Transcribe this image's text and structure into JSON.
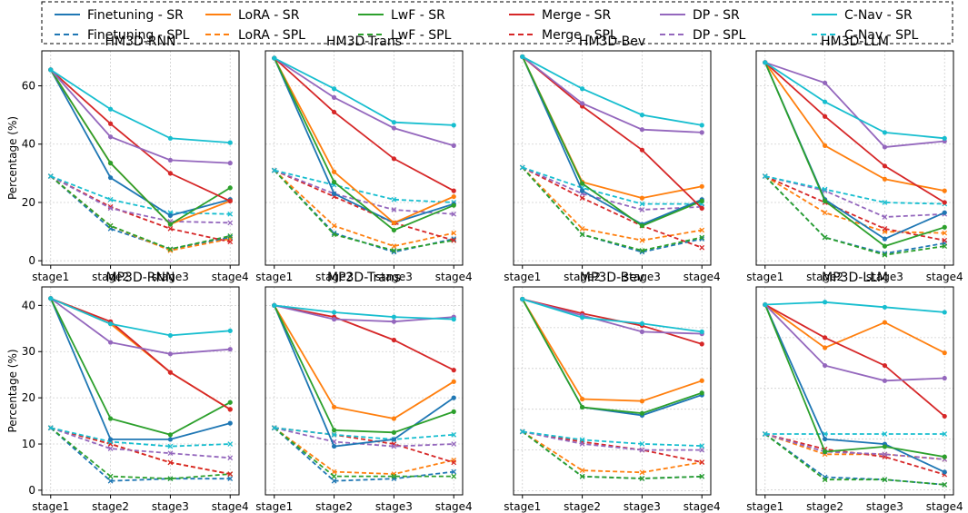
{
  "legend": [
    {
      "label": "Finetuning - SR",
      "color": "#1f77b4",
      "dash": false
    },
    {
      "label": "LoRA - SR",
      "color": "#ff7f0e",
      "dash": false
    },
    {
      "label": "LwF - SR",
      "color": "#2ca02c",
      "dash": false
    },
    {
      "label": "Merge - SR",
      "color": "#d62728",
      "dash": false
    },
    {
      "label": "DP - SR",
      "color": "#9467bd",
      "dash": false
    },
    {
      "label": "C-Nav - SR",
      "color": "#17becf",
      "dash": false
    },
    {
      "label": "Finetuning - SPL",
      "color": "#1f77b4",
      "dash": true
    },
    {
      "label": "LoRA - SPL",
      "color": "#ff7f0e",
      "dash": true
    },
    {
      "label": "LwF - SPL",
      "color": "#2ca02c",
      "dash": true
    },
    {
      "label": "Merge - SPL",
      "color": "#d62728",
      "dash": true
    },
    {
      "label": "DP - SPL",
      "color": "#9467bd",
      "dash": true
    },
    {
      "label": "C-Nav - SPL",
      "color": "#17becf",
      "dash": true
    }
  ],
  "chart_data": [
    {
      "type": "line",
      "title": "HM3D-RNN",
      "ylabel": "Percentage (%)",
      "categories": [
        "stage1",
        "stage2",
        "stage3",
        "stage4"
      ],
      "ylim": [
        -1.5,
        72
      ],
      "yticks": [
        0,
        20,
        40,
        60
      ],
      "series": [
        {
          "name": "Finetuning - SR",
          "values": [
            65.5,
            28.5,
            15.5,
            21
          ]
        },
        {
          "name": "LoRA - SR",
          "values": [
            65.5,
            33.5,
            12.5,
            20.5
          ]
        },
        {
          "name": "LwF - SR",
          "values": [
            65.5,
            33.5,
            12.5,
            25
          ]
        },
        {
          "name": "Merge - SR",
          "values": [
            65.5,
            47,
            30,
            20.5
          ]
        },
        {
          "name": "DP - SR",
          "values": [
            65.5,
            42.5,
            34.5,
            33.5
          ]
        },
        {
          "name": "C-Nav - SR",
          "values": [
            65.5,
            52,
            42,
            40.5
          ]
        },
        {
          "name": "Finetuning - SPL",
          "values": [
            29,
            11,
            4,
            8
          ]
        },
        {
          "name": "LoRA - SPL",
          "values": [
            29,
            12,
            3.5,
            7.5
          ]
        },
        {
          "name": "LwF - SPL",
          "values": [
            29,
            12,
            4,
            8.5
          ]
        },
        {
          "name": "Merge - SPL",
          "values": [
            29,
            18.5,
            11,
            6.5
          ]
        },
        {
          "name": "DP - SPL",
          "values": [
            29,
            18,
            13.5,
            13
          ]
        },
        {
          "name": "C-Nav - SPL",
          "values": [
            29,
            21,
            16.5,
            16
          ]
        }
      ]
    },
    {
      "type": "line",
      "title": "HM3D-Trans",
      "ylabel": "",
      "categories": [
        "stage1",
        "stage2",
        "stage3",
        "stage4"
      ],
      "ylim": [
        -1.5,
        72
      ],
      "yticks": [],
      "series": [
        {
          "name": "Finetuning - SR",
          "values": [
            69.5,
            23,
            13,
            19.5
          ]
        },
        {
          "name": "LoRA - SR",
          "values": [
            69.5,
            30.5,
            13,
            22
          ]
        },
        {
          "name": "LwF - SR",
          "values": [
            69.5,
            27,
            10.5,
            19
          ]
        },
        {
          "name": "Merge - SR",
          "values": [
            69.5,
            51,
            35,
            24
          ]
        },
        {
          "name": "DP - SR",
          "values": [
            69.5,
            56,
            45.5,
            39.5
          ]
        },
        {
          "name": "C-Nav - SR",
          "values": [
            69.5,
            59,
            47.5,
            46.5
          ]
        },
        {
          "name": "Finetuning - SPL",
          "values": [
            31,
            9.5,
            3,
            7.5
          ]
        },
        {
          "name": "LoRA - SPL",
          "values": [
            31,
            12,
            5,
            9.5
          ]
        },
        {
          "name": "LwF - SPL",
          "values": [
            31,
            9,
            3.5,
            7
          ]
        },
        {
          "name": "Merge - SPL",
          "values": [
            31,
            22,
            13,
            7
          ]
        },
        {
          "name": "DP - SPL",
          "values": [
            31,
            23,
            17.5,
            16
          ]
        },
        {
          "name": "C-Nav - SPL",
          "values": [
            31,
            26,
            21,
            20
          ]
        }
      ]
    },
    {
      "type": "line",
      "title": "HM3D-Bev",
      "ylabel": "",
      "categories": [
        "stage1",
        "stage2",
        "stage3",
        "stage4"
      ],
      "ylim": [
        -1.5,
        72
      ],
      "yticks": [],
      "series": [
        {
          "name": "Finetuning - SR",
          "values": [
            70,
            24,
            12.5,
            21
          ]
        },
        {
          "name": "LoRA - SR",
          "values": [
            70,
            27,
            21.5,
            25.5
          ]
        },
        {
          "name": "LwF - SR",
          "values": [
            70,
            26.5,
            12,
            20.5
          ]
        },
        {
          "name": "Merge - SR",
          "values": [
            70,
            53,
            38,
            18
          ]
        },
        {
          "name": "DP - SR",
          "values": [
            70,
            54,
            45,
            44
          ]
        },
        {
          "name": "C-Nav - SR",
          "values": [
            70,
            59,
            50,
            46.5
          ]
        },
        {
          "name": "Finetuning - SPL",
          "values": [
            32,
            9,
            3,
            7.5
          ]
        },
        {
          "name": "LoRA - SPL",
          "values": [
            32,
            11,
            7,
            10.5
          ]
        },
        {
          "name": "LwF - SPL",
          "values": [
            32,
            9,
            3.5,
            8
          ]
        },
        {
          "name": "Merge - SPL",
          "values": [
            32,
            21.5,
            12,
            4.5
          ]
        },
        {
          "name": "DP - SPL",
          "values": [
            32,
            23,
            17.5,
            18.5
          ]
        },
        {
          "name": "C-Nav - SPL",
          "values": [
            32,
            25,
            19.5,
            19.5
          ]
        }
      ]
    },
    {
      "type": "line",
      "title": "HM3D-LLM",
      "ylabel": "",
      "categories": [
        "stage1",
        "stage2",
        "stage3",
        "stage4"
      ],
      "ylim": [
        -1.5,
        72
      ],
      "yticks": [],
      "series": [
        {
          "name": "Finetuning - SR",
          "values": [
            68,
            21,
            7.5,
            16.5
          ]
        },
        {
          "name": "LoRA - SR",
          "values": [
            68,
            39.5,
            28,
            24
          ]
        },
        {
          "name": "LwF - SR",
          "values": [
            68,
            20.5,
            5,
            11.5
          ]
        },
        {
          "name": "Merge - SR",
          "values": [
            68,
            49.5,
            32.5,
            20
          ]
        },
        {
          "name": "DP - SR",
          "values": [
            68,
            61,
            39,
            41
          ]
        },
        {
          "name": "C-Nav - SR",
          "values": [
            68,
            54.5,
            44,
            42
          ]
        },
        {
          "name": "Finetuning - SPL",
          "values": [
            29,
            8,
            2.5,
            6
          ]
        },
        {
          "name": "LoRA - SPL",
          "values": [
            29,
            16.5,
            10,
            9.5
          ]
        },
        {
          "name": "LwF - SPL",
          "values": [
            29,
            8,
            2,
            5
          ]
        },
        {
          "name": "Merge - SPL",
          "values": [
            29,
            20,
            11,
            7
          ]
        },
        {
          "name": "DP - SPL",
          "values": [
            29,
            24,
            15,
            16
          ]
        },
        {
          "name": "C-Nav - SPL",
          "values": [
            29,
            24.5,
            20,
            19.5
          ]
        }
      ]
    },
    {
      "type": "line",
      "title": "MP3D-RNN",
      "ylabel": "Percentage (%)",
      "categories": [
        "stage1",
        "stage2",
        "stage3",
        "stage4"
      ],
      "ylim": [
        -1,
        44
      ],
      "yticks": [
        0,
        10,
        20,
        30,
        40
      ],
      "series": [
        {
          "name": "Finetuning - SR",
          "values": [
            41.5,
            11,
            11,
            14.5
          ]
        },
        {
          "name": "LoRA - SR",
          "values": [
            41.5,
            36,
            25.5,
            17.5
          ]
        },
        {
          "name": "LwF - SR",
          "values": [
            41.5,
            15.5,
            12,
            19
          ]
        },
        {
          "name": "Merge - SR",
          "values": [
            41.5,
            36.5,
            25.5,
            17.5
          ]
        },
        {
          "name": "DP - SR",
          "values": [
            41.5,
            32,
            29.5,
            30.5
          ]
        },
        {
          "name": "C-Nav - SR",
          "values": [
            41.5,
            36,
            33.5,
            34.5
          ]
        },
        {
          "name": "Finetuning - SPL",
          "values": [
            13.5,
            2,
            2.5,
            2.5
          ]
        },
        {
          "name": "LoRA - SPL",
          "values": [
            13.5,
            10,
            6,
            3.5
          ]
        },
        {
          "name": "LwF - SPL",
          "values": [
            13.5,
            3,
            2.5,
            3.5
          ]
        },
        {
          "name": "Merge - SPL",
          "values": [
            13.5,
            10,
            6,
            3.5
          ]
        },
        {
          "name": "DP - SPL",
          "values": [
            13.5,
            9,
            8,
            7
          ]
        },
        {
          "name": "C-Nav - SPL",
          "values": [
            13.5,
            10.5,
            9.5,
            10
          ]
        }
      ]
    },
    {
      "type": "line",
      "title": "MP3D-Trans",
      "ylabel": "",
      "categories": [
        "stage1",
        "stage2",
        "stage3",
        "stage4"
      ],
      "ylim": [
        -1,
        44
      ],
      "yticks": [],
      "series": [
        {
          "name": "Finetuning - SR",
          "values": [
            40,
            9.5,
            11,
            20
          ]
        },
        {
          "name": "LoRA - SR",
          "values": [
            40,
            18,
            15.5,
            23.5
          ]
        },
        {
          "name": "LwF - SR",
          "values": [
            40,
            13,
            12.5,
            17
          ]
        },
        {
          "name": "Merge - SR",
          "values": [
            40,
            37.5,
            32.5,
            26
          ]
        },
        {
          "name": "DP - SR",
          "values": [
            40,
            37,
            36.5,
            37.5
          ]
        },
        {
          "name": "C-Nav - SR",
          "values": [
            40,
            38.5,
            37.5,
            37
          ]
        },
        {
          "name": "Finetuning - SPL",
          "values": [
            13.5,
            2,
            2.5,
            4
          ]
        },
        {
          "name": "LoRA - SPL",
          "values": [
            13.5,
            4,
            3.5,
            6.5
          ]
        },
        {
          "name": "LwF - SPL",
          "values": [
            13.5,
            3,
            3,
            3
          ]
        },
        {
          "name": "Merge - SPL",
          "values": [
            13.5,
            12,
            10,
            6
          ]
        },
        {
          "name": "DP - SPL",
          "values": [
            13.5,
            10.5,
            9.5,
            10
          ]
        },
        {
          "name": "C-Nav - SPL",
          "values": [
            13.5,
            12,
            11,
            12
          ]
        }
      ]
    },
    {
      "type": "line",
      "title": "MP3D-Bev",
      "ylabel": "",
      "categories": [
        "stage1",
        "stage2",
        "stage3",
        "stage4"
      ],
      "ylim": [
        -1,
        50
      ],
      "yticks": [],
      "series": [
        {
          "name": "Finetuning - SR",
          "values": [
            47,
            20.5,
            18.5,
            23.5
          ]
        },
        {
          "name": "LoRA - SR",
          "values": [
            47,
            22.5,
            22,
            27
          ]
        },
        {
          "name": "LwF - SR",
          "values": [
            47,
            20.5,
            19,
            24
          ]
        },
        {
          "name": "Merge - SR",
          "values": [
            47,
            43.5,
            40.5,
            36
          ]
        },
        {
          "name": "DP - SR",
          "values": [
            47,
            43,
            39,
            38.5
          ]
        },
        {
          "name": "C-Nav - SR",
          "values": [
            47,
            42.5,
            41,
            39
          ]
        },
        {
          "name": "Finetuning - SPL",
          "values": [
            14.5,
            3.5,
            3,
            3.5
          ]
        },
        {
          "name": "LoRA - SPL",
          "values": [
            14.5,
            5,
            4.5,
            7
          ]
        },
        {
          "name": "LwF - SPL",
          "values": [
            14.5,
            3.5,
            3,
            3.5
          ]
        },
        {
          "name": "Merge - SPL",
          "values": [
            14.5,
            12,
            10,
            7
          ]
        },
        {
          "name": "DP - SPL",
          "values": [
            14.5,
            11.5,
            10,
            10
          ]
        },
        {
          "name": "C-Nav - SPL",
          "values": [
            14.5,
            12.5,
            11.5,
            11
          ]
        }
      ]
    },
    {
      "type": "line",
      "title": "MP3D-LLM",
      "ylabel": "",
      "categories": [
        "stage1",
        "stage2",
        "stage3",
        "stage4"
      ],
      "ylim": [
        -1,
        40
      ],
      "yticks": [],
      "series": [
        {
          "name": "Finetuning - SR",
          "values": [
            36.5,
            10,
            9,
            3.5
          ]
        },
        {
          "name": "LoRA - SR",
          "values": [
            36.5,
            28,
            33,
            27
          ]
        },
        {
          "name": "LwF - SR",
          "values": [
            36.5,
            7.5,
            8.5,
            6.5
          ]
        },
        {
          "name": "Merge - SR",
          "values": [
            36.5,
            30,
            24.5,
            14.5
          ]
        },
        {
          "name": "DP - SR",
          "values": [
            36.5,
            24.5,
            21.5,
            22
          ]
        },
        {
          "name": "C-Nav - SR",
          "values": [
            36.5,
            37,
            36,
            35
          ]
        },
        {
          "name": "Finetuning - SPL",
          "values": [
            11,
            2.5,
            2,
            1
          ]
        },
        {
          "name": "LoRA - SPL",
          "values": [
            11,
            7,
            7,
            6
          ]
        },
        {
          "name": "LwF - SPL",
          "values": [
            11,
            2,
            2,
            1
          ]
        },
        {
          "name": "Merge - SPL",
          "values": [
            11,
            8,
            6.5,
            3
          ]
        },
        {
          "name": "DP - SPL",
          "values": [
            11,
            7.5,
            7,
            6
          ]
        },
        {
          "name": "C-Nav - SPL",
          "values": [
            11,
            11,
            11,
            11
          ]
        }
      ]
    }
  ]
}
